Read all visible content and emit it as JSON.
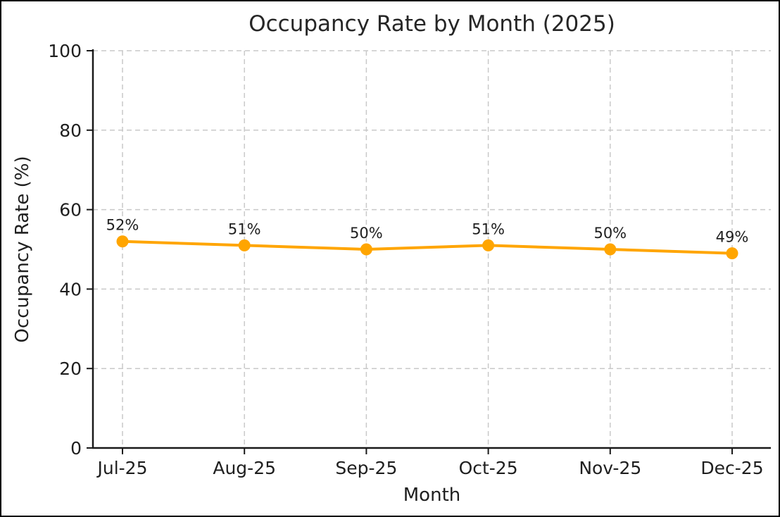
{
  "chart_data": {
    "type": "line",
    "title": "Occupancy Rate by Month (2025)",
    "xlabel": "Month",
    "ylabel": "Occupancy Rate (%)",
    "categories": [
      "Jul-25",
      "Aug-25",
      "Sep-25",
      "Oct-25",
      "Nov-25",
      "Dec-25"
    ],
    "values": [
      52,
      51,
      50,
      51,
      50,
      49
    ],
    "point_labels": [
      "52%",
      "51%",
      "50%",
      "51%",
      "50%",
      "49%"
    ],
    "ylim": [
      0,
      100
    ],
    "yticks": [
      0,
      20,
      40,
      60,
      80,
      100
    ],
    "grid": "dashed-both-axes",
    "legend": "none",
    "colors": {
      "line": "#FFA500",
      "marker": "#FFA500",
      "grid": "#c9c9c9",
      "axis": "#1a1a1a",
      "text": "#1f1f1f",
      "background": "#ffffff",
      "figure_border": "#000000"
    }
  }
}
